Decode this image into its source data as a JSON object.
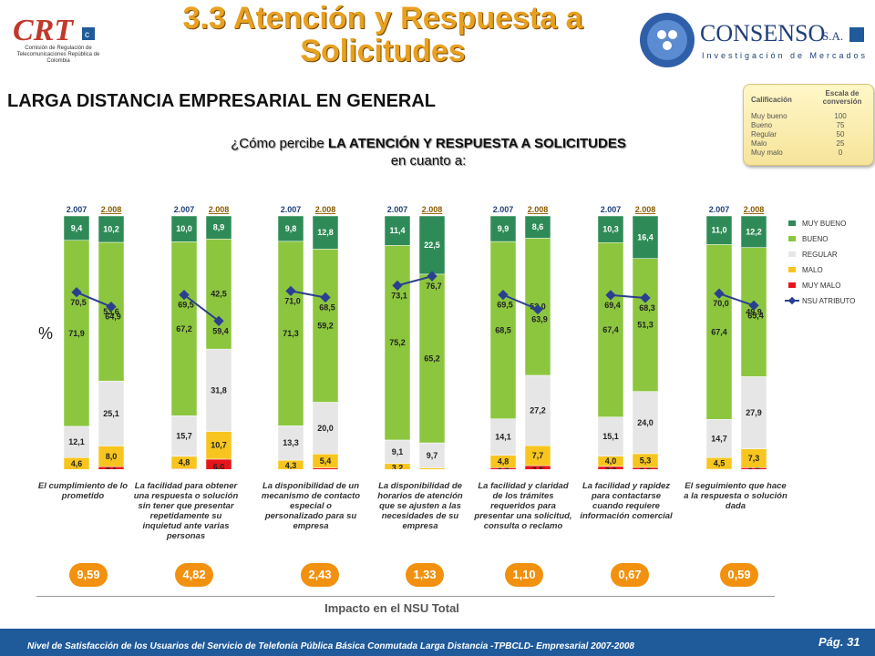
{
  "title": "3.3 Atención y Respuesta a Solicitudes",
  "subtitle": "LARGA DISTANCIA EMPRESARIAL EN GENERAL",
  "question": {
    "prefix": "¿Cómo percibe ",
    "bold": "LA ATENCIÓN Y RESPUESTA A SOLICITUDES",
    "suffix": " en cuanto a:"
  },
  "crt_logo": {
    "text": "CRT",
    "caption": "Comisión de Regulación de Telecomunicaciones República de Colombia"
  },
  "consenso_logo": {
    "name": "CONSENSO",
    "suffix": "S.A.",
    "tagline": "Investigación de Mercados"
  },
  "rating_table": {
    "col1": "Calificación",
    "col2": "Escala de conversión",
    "rows": [
      {
        "label": "Muy bueno",
        "value": "100"
      },
      {
        "label": "Bueno",
        "value": "75"
      },
      {
        "label": "Regular",
        "value": "50"
      },
      {
        "label": "Malo",
        "value": "25"
      },
      {
        "label": "Muy malo",
        "value": "0"
      }
    ]
  },
  "y_axis_symbol": "%",
  "impact_title": "Impacto en el NSU Total",
  "footer": "Nivel de Satisfacción de los Usuarios del Servicio de Telefonía Pública Básica Conmutada Larga Distancia -TPBCLD- Empresarial 2007-2008",
  "page": "Pág. 31",
  "colors": {
    "muy_bueno": "#2e8b57",
    "bueno": "#8cc63f",
    "regular": "#e6e6e6",
    "malo": "#f7c51e",
    "muy_malo": "#e8141b",
    "nsu": "#2a3f8f",
    "impact": "#f2910f"
  },
  "chart_data": {
    "type": "bar",
    "stacked": true,
    "legend": [
      "MUY BUENO",
      "BUENO",
      "REGULAR",
      "MALO",
      "MUY MALO",
      "NSU ATRIBUTO"
    ],
    "legend_position": "right",
    "groups": [
      {
        "category": "El cumplimiento de lo prometido",
        "impact": "9,59",
        "bars": [
          {
            "year": "2.007",
            "muy_malo": "",
            "malo": "4,6",
            "regular": "12,1",
            "bueno": "71,9",
            "muy_bueno": "9,4",
            "nsu": "70,5",
            "v": [
              2.0,
              4.6,
              12.1,
              71.9,
              9.4
            ],
            "nsu_v": 70.5
          },
          {
            "year": "2.008",
            "muy_malo": "3,1",
            "malo": "8,0",
            "regular": "25,1",
            "bueno": "53,6",
            "muy_bueno": "10,2",
            "nsu": "64,9",
            "v": [
              3.1,
              8.0,
              25.1,
              53.6,
              10.2
            ],
            "nsu_v": 64.9
          }
        ]
      },
      {
        "category": "La facilidad para obtener una respuesta o solución sin tener que presentar repetidamente su inquietud ante varias personas",
        "impact": "4,82",
        "bars": [
          {
            "year": "2.007",
            "muy_malo": "",
            "malo": "4,8",
            "regular": "15,7",
            "bueno": "67,2",
            "muy_bueno": "10,0",
            "nsu": "69,5",
            "v": [
              2.3,
              4.8,
              15.7,
              67.2,
              10.0
            ],
            "nsu_v": 69.5
          },
          {
            "year": "2.008",
            "muy_malo": "6,0",
            "malo": "10,7",
            "regular": "31,8",
            "bueno": "42,5",
            "muy_bueno": "8,9",
            "nsu": "59,4",
            "v": [
              6.0,
              10.7,
              31.8,
              42.5,
              8.9
            ],
            "nsu_v": 59.4
          }
        ]
      },
      {
        "category": "La disponibilidad de un mecanismo de contacto especial o personalizado para su empresa",
        "impact": "2,43",
        "bars": [
          {
            "year": "2.007",
            "muy_malo": "",
            "malo": "4,3",
            "regular": "13,3",
            "bueno": "71,3",
            "muy_bueno": "9,8",
            "nsu": "71,0",
            "v": [
              1.3,
              4.3,
              13.3,
              71.3,
              9.8
            ],
            "nsu_v": 71.0
          },
          {
            "year": "2.008",
            "muy_malo": "",
            "malo": "5,4",
            "regular": "20,0",
            "bueno": "59,2",
            "muy_bueno": "12,8",
            "nsu": "68,5",
            "v": [
              2.6,
              5.4,
              20.0,
              59.2,
              12.8
            ],
            "nsu_v": 68.5
          }
        ]
      },
      {
        "category": "La disponibilidad de horarios de atención que se ajusten a las necesidades de su empresa",
        "impact": "1,33",
        "bars": [
          {
            "year": "2.007",
            "muy_malo": "",
            "malo": "3,2",
            "regular": "9,1",
            "bueno": "75,2",
            "muy_bueno": "11,4",
            "nsu": "73,1",
            "v": [
              1.1,
              3.2,
              9.1,
              75.2,
              11.4
            ],
            "nsu_v": 73.1
          },
          {
            "year": "2.008",
            "muy_malo": "",
            "malo": "",
            "regular": "9,7",
            "bueno": "65,2",
            "muy_bueno": "22,5",
            "nsu": "76,7",
            "v": [
              1.0,
              1.6,
              9.7,
              65.2,
              22.5
            ],
            "nsu_v": 76.7
          }
        ]
      },
      {
        "category": "La facilidad y claridad de los trámites requeridos para presentar una solicitud, consulta o reclamo",
        "impact": "1,10",
        "bars": [
          {
            "year": "2.007",
            "muy_malo": "2,7",
            "malo": "4,8",
            "regular": "14,1",
            "bueno": "68,5",
            "muy_bueno": "9,9",
            "nsu": "69,5",
            "v": [
              2.7,
              4.8,
              14.1,
              68.5,
              9.9
            ],
            "nsu_v": 69.5
          },
          {
            "year": "2.008",
            "muy_malo": "3,5",
            "malo": "7,7",
            "regular": "27,2",
            "bueno": "53,0",
            "muy_bueno": "8,6",
            "nsu": "63,9",
            "v": [
              3.5,
              7.7,
              27.2,
              53.0,
              8.6
            ],
            "nsu_v": 63.9
          }
        ]
      },
      {
        "category": "La facilidad y rapidez para contactarse cuando requiere información comercial",
        "impact": "0,67",
        "bars": [
          {
            "year": "2.007",
            "muy_malo": "3,2",
            "malo": "4,0",
            "regular": "15,1",
            "bueno": "67,4",
            "muy_bueno": "10,3",
            "nsu": "69,4",
            "v": [
              3.2,
              4.0,
              15.1,
              67.4,
              10.3
            ],
            "nsu_v": 69.4
          },
          {
            "year": "2.008",
            "muy_malo": "2,8",
            "malo": "5,3",
            "regular": "24,0",
            "bueno": "51,3",
            "muy_bueno": "16,4",
            "nsu": "68,3",
            "v": [
              2.8,
              5.3,
              24.0,
              51.3,
              16.4
            ],
            "nsu_v": 68.3
          }
        ]
      },
      {
        "category": "El seguimiento que hace a la respuesta o solución dada",
        "impact": "0,59",
        "bars": [
          {
            "year": "2.007",
            "muy_malo": "2,1",
            "malo": "4,5",
            "regular": "14,7",
            "bueno": "67,4",
            "muy_bueno": "11,0",
            "nsu": "70,0",
            "v": [
              2.1,
              4.5,
              14.7,
              67.4,
              11.0
            ],
            "nsu_v": 70.0
          },
          {
            "year": "2.008",
            "muy_malo": "2,7",
            "malo": "7,3",
            "regular": "27,9",
            "bueno": "49,9",
            "muy_bueno": "12,2",
            "nsu": "65,4",
            "v": [
              2.7,
              7.3,
              27.9,
              49.9,
              12.2
            ],
            "nsu_v": 65.4
          }
        ]
      }
    ]
  }
}
